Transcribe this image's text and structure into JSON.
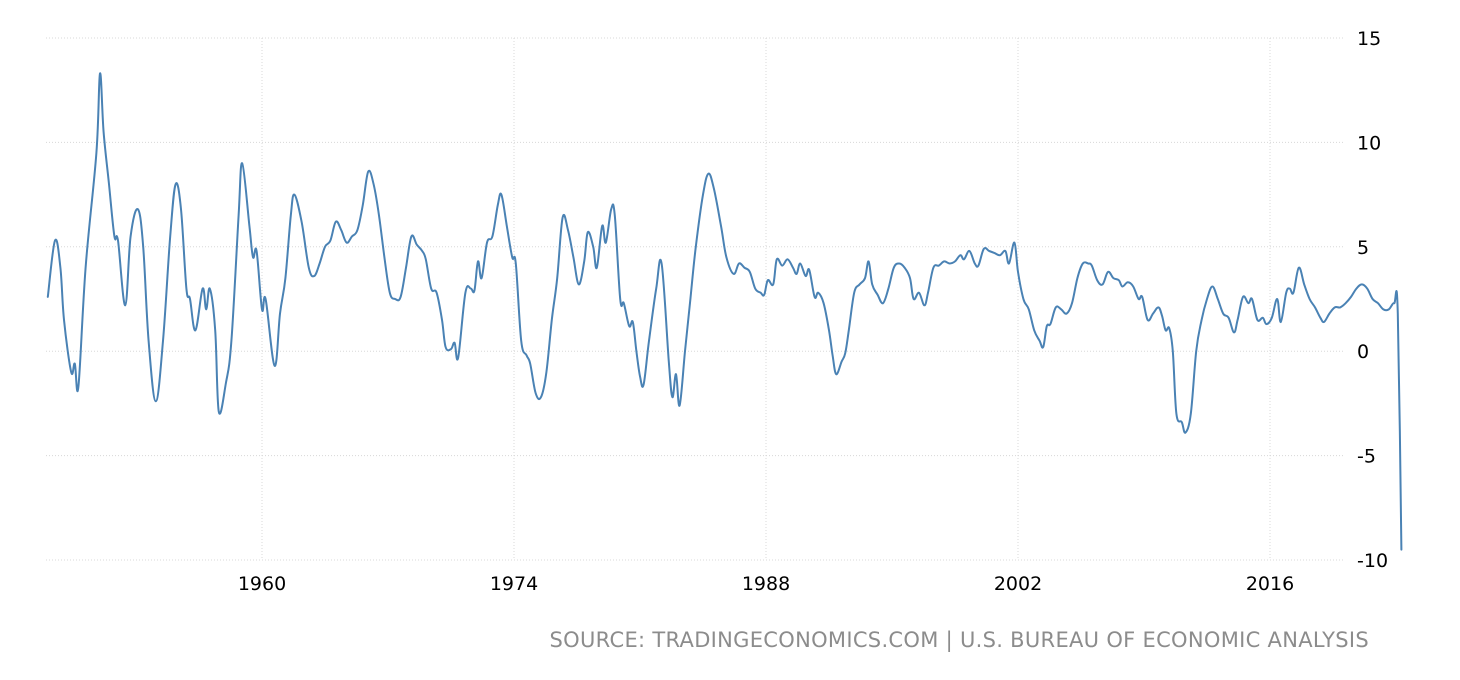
{
  "source": "SOURCE: TRADINGECONOMICS.COM | U.S. BUREAU OF ECONOMIC ANALYSIS",
  "colors": {
    "line": "#4a82b4",
    "grid": "#d8d8d8",
    "text": "#000000",
    "source": "#8c8c8c"
  },
  "chart_data": {
    "type": "line",
    "title": "",
    "xlabel": "",
    "ylabel": "",
    "xlim": [
      1948,
      2020.3
    ],
    "ylim": [
      -10,
      15
    ],
    "x_ticks": [
      1960,
      1974,
      1988,
      2002,
      2016
    ],
    "y_ticks": [
      15,
      10,
      5,
      0,
      -5,
      -10
    ],
    "y_axis_side": "right",
    "grid": true,
    "legend": "none",
    "series": [
      {
        "values": [
          [
            1948.1,
            2.6
          ],
          [
            1948.5,
            5.3
          ],
          [
            1948.8,
            4.0
          ],
          [
            1949.0,
            1.5
          ],
          [
            1949.4,
            -1.0
          ],
          [
            1949.6,
            -0.6
          ],
          [
            1949.8,
            -1.7
          ],
          [
            1950.2,
            4.0
          ],
          [
            1950.8,
            9.5
          ],
          [
            1951.0,
            13.3
          ],
          [
            1951.2,
            10.5
          ],
          [
            1951.5,
            8.0
          ],
          [
            1951.8,
            5.5
          ],
          [
            1952.0,
            5.3
          ],
          [
            1952.4,
            2.2
          ],
          [
            1952.7,
            5.5
          ],
          [
            1953.1,
            6.8
          ],
          [
            1953.4,
            5.0
          ],
          [
            1953.7,
            0.5
          ],
          [
            1954.1,
            -2.4
          ],
          [
            1954.5,
            0.5
          ],
          [
            1954.9,
            5.5
          ],
          [
            1955.2,
            8.0
          ],
          [
            1955.5,
            6.8
          ],
          [
            1955.8,
            3.0
          ],
          [
            1956.0,
            2.5
          ],
          [
            1956.3,
            1.0
          ],
          [
            1956.7,
            3.0
          ],
          [
            1956.9,
            2.0
          ],
          [
            1957.1,
            3.0
          ],
          [
            1957.4,
            1.0
          ],
          [
            1957.6,
            -2.9
          ],
          [
            1958.0,
            -1.5
          ],
          [
            1958.3,
            0.5
          ],
          [
            1958.7,
            6.5
          ],
          [
            1958.9,
            9.0
          ],
          [
            1959.3,
            6.0
          ],
          [
            1959.5,
            4.5
          ],
          [
            1959.7,
            4.8
          ],
          [
            1960.0,
            2.0
          ],
          [
            1960.2,
            2.5
          ],
          [
            1960.7,
            -0.7
          ],
          [
            1961.0,
            1.8
          ],
          [
            1961.3,
            3.5
          ],
          [
            1961.6,
            6.5
          ],
          [
            1961.8,
            7.5
          ],
          [
            1962.2,
            6.2
          ],
          [
            1962.6,
            4.0
          ],
          [
            1962.9,
            3.6
          ],
          [
            1963.2,
            4.2
          ],
          [
            1963.5,
            5.0
          ],
          [
            1963.8,
            5.3
          ],
          [
            1964.1,
            6.2
          ],
          [
            1964.4,
            5.8
          ],
          [
            1964.7,
            5.2
          ],
          [
            1965.0,
            5.5
          ],
          [
            1965.3,
            5.8
          ],
          [
            1965.6,
            7.0
          ],
          [
            1965.9,
            8.6
          ],
          [
            1966.2,
            8.0
          ],
          [
            1966.5,
            6.5
          ],
          [
            1966.8,
            4.5
          ],
          [
            1967.1,
            2.8
          ],
          [
            1967.4,
            2.5
          ],
          [
            1967.7,
            2.6
          ],
          [
            1968.0,
            4.0
          ],
          [
            1968.3,
            5.5
          ],
          [
            1968.6,
            5.1
          ],
          [
            1968.9,
            4.8
          ],
          [
            1969.1,
            4.4
          ],
          [
            1969.4,
            3.0
          ],
          [
            1969.7,
            2.8
          ],
          [
            1970.0,
            1.5
          ],
          [
            1970.2,
            0.2
          ],
          [
            1970.5,
            0.1
          ],
          [
            1970.7,
            0.4
          ],
          [
            1970.9,
            -0.3
          ],
          [
            1971.3,
            2.8
          ],
          [
            1971.6,
            3.0
          ],
          [
            1971.8,
            2.9
          ],
          [
            1972.0,
            4.3
          ],
          [
            1972.2,
            3.5
          ],
          [
            1972.5,
            5.2
          ],
          [
            1972.8,
            5.5
          ],
          [
            1973.1,
            7.0
          ],
          [
            1973.3,
            7.5
          ],
          [
            1973.6,
            6.0
          ],
          [
            1973.9,
            4.5
          ],
          [
            1974.1,
            4.2
          ],
          [
            1974.4,
            0.5
          ],
          [
            1974.7,
            -0.2
          ],
          [
            1974.9,
            -0.6
          ],
          [
            1975.2,
            -2.0
          ],
          [
            1975.5,
            -2.2
          ],
          [
            1975.8,
            -1.0
          ],
          [
            1976.1,
            1.5
          ],
          [
            1976.4,
            3.5
          ],
          [
            1976.7,
            6.4
          ],
          [
            1977.0,
            5.8
          ],
          [
            1977.3,
            4.5
          ],
          [
            1977.6,
            3.2
          ],
          [
            1977.9,
            4.3
          ],
          [
            1978.1,
            5.7
          ],
          [
            1978.4,
            5.0
          ],
          [
            1978.6,
            4.0
          ],
          [
            1978.9,
            6.0
          ],
          [
            1979.1,
            5.2
          ],
          [
            1979.4,
            6.8
          ],
          [
            1979.6,
            6.5
          ],
          [
            1979.9,
            2.5
          ],
          [
            1980.1,
            2.3
          ],
          [
            1980.4,
            1.2
          ],
          [
            1980.6,
            1.4
          ],
          [
            1980.8,
            0.0
          ],
          [
            1981.0,
            -1.2
          ],
          [
            1981.2,
            -1.6
          ],
          [
            1981.5,
            0.5
          ],
          [
            1981.9,
            3.0
          ],
          [
            1982.2,
            4.2
          ],
          [
            1982.6,
            -0.5
          ],
          [
            1982.8,
            -2.2
          ],
          [
            1983.0,
            -1.1
          ],
          [
            1983.2,
            -2.6
          ],
          [
            1983.5,
            0.0
          ],
          [
            1983.8,
            2.5
          ],
          [
            1984.1,
            5.0
          ],
          [
            1984.5,
            7.5
          ],
          [
            1984.8,
            8.5
          ],
          [
            1985.1,
            7.8
          ],
          [
            1985.5,
            6.0
          ],
          [
            1985.8,
            4.5
          ],
          [
            1986.2,
            3.7
          ],
          [
            1986.5,
            4.2
          ],
          [
            1986.8,
            4.0
          ],
          [
            1987.1,
            3.8
          ],
          [
            1987.4,
            3.0
          ],
          [
            1987.7,
            2.8
          ],
          [
            1987.9,
            2.7
          ],
          [
            1988.1,
            3.4
          ],
          [
            1988.4,
            3.2
          ],
          [
            1988.6,
            4.4
          ],
          [
            1988.9,
            4.1
          ],
          [
            1989.2,
            4.4
          ],
          [
            1989.5,
            4.0
          ],
          [
            1989.7,
            3.7
          ],
          [
            1989.9,
            4.2
          ],
          [
            1990.2,
            3.6
          ],
          [
            1990.4,
            3.9
          ],
          [
            1990.7,
            2.6
          ],
          [
            1990.9,
            2.8
          ],
          [
            1991.2,
            2.3
          ],
          [
            1991.5,
            1.0
          ],
          [
            1991.7,
            -0.2
          ],
          [
            1991.9,
            -1.1
          ],
          [
            1992.2,
            -0.5
          ],
          [
            1992.4,
            -0.1
          ],
          [
            1992.6,
            1.0
          ],
          [
            1992.9,
            2.8
          ],
          [
            1993.2,
            3.2
          ],
          [
            1993.5,
            3.5
          ],
          [
            1993.7,
            4.3
          ],
          [
            1993.9,
            3.2
          ],
          [
            1994.2,
            2.7
          ],
          [
            1994.5,
            2.3
          ],
          [
            1994.8,
            3.0
          ],
          [
            1995.1,
            4.0
          ],
          [
            1995.4,
            4.2
          ],
          [
            1995.7,
            4.0
          ],
          [
            1996.0,
            3.5
          ],
          [
            1996.2,
            2.5
          ],
          [
            1996.5,
            2.8
          ],
          [
            1996.8,
            2.2
          ],
          [
            1997.0,
            2.8
          ],
          [
            1997.3,
            4.0
          ],
          [
            1997.6,
            4.1
          ],
          [
            1997.9,
            4.3
          ],
          [
            1998.2,
            4.2
          ],
          [
            1998.5,
            4.3
          ],
          [
            1998.8,
            4.6
          ],
          [
            1999.0,
            4.4
          ],
          [
            1999.3,
            4.8
          ],
          [
            1999.6,
            4.2
          ],
          [
            1999.8,
            4.1
          ],
          [
            2000.1,
            4.9
          ],
          [
            2000.4,
            4.8
          ],
          [
            2000.7,
            4.7
          ],
          [
            2001.0,
            4.6
          ],
          [
            2001.3,
            4.8
          ],
          [
            2001.5,
            4.2
          ],
          [
            2001.8,
            5.2
          ],
          [
            2002.0,
            3.8
          ],
          [
            2002.3,
            2.5
          ],
          [
            2002.6,
            2.0
          ],
          [
            2002.9,
            1.0
          ],
          [
            2003.2,
            0.5
          ],
          [
            2003.4,
            0.2
          ],
          [
            2003.6,
            1.2
          ],
          [
            2003.8,
            1.3
          ],
          [
            2004.1,
            2.1
          ],
          [
            2004.4,
            2.0
          ],
          [
            2004.7,
            1.8
          ],
          [
            2005.0,
            2.3
          ],
          [
            2005.3,
            3.5
          ],
          [
            2005.6,
            4.2
          ],
          [
            2005.9,
            4.2
          ],
          [
            2006.1,
            4.1
          ],
          [
            2006.4,
            3.4
          ],
          [
            2006.7,
            3.2
          ],
          [
            2007.0,
            3.8
          ],
          [
            2007.3,
            3.5
          ],
          [
            2007.6,
            3.4
          ],
          [
            2007.8,
            3.1
          ],
          [
            2008.1,
            3.3
          ],
          [
            2008.4,
            3.1
          ],
          [
            2008.7,
            2.5
          ],
          [
            2008.9,
            2.6
          ],
          [
            2009.2,
            1.5
          ],
          [
            2009.5,
            1.8
          ],
          [
            2009.8,
            2.1
          ],
          [
            2010.0,
            1.7
          ],
          [
            2010.2,
            1.0
          ],
          [
            2010.4,
            1.1
          ],
          [
            2010.6,
            0.0
          ],
          [
            2010.8,
            -3.0
          ],
          [
            2011.1,
            -3.4
          ],
          [
            2011.3,
            -3.9
          ],
          [
            2011.6,
            -3.0
          ],
          [
            2011.9,
            0.0
          ],
          [
            2012.2,
            1.5
          ],
          [
            2012.5,
            2.5
          ],
          [
            2012.8,
            3.1
          ],
          [
            2013.1,
            2.5
          ],
          [
            2013.4,
            1.8
          ],
          [
            2013.7,
            1.6
          ],
          [
            2014.0,
            0.9
          ],
          [
            2014.2,
            1.5
          ],
          [
            2014.5,
            2.6
          ],
          [
            2014.8,
            2.3
          ],
          [
            2015.0,
            2.5
          ],
          [
            2015.3,
            1.5
          ],
          [
            2015.6,
            1.6
          ],
          [
            2015.8,
            1.3
          ],
          [
            2016.1,
            1.6
          ],
          [
            2016.4,
            2.5
          ],
          [
            2016.6,
            1.4
          ],
          [
            2016.9,
            2.8
          ],
          [
            2017.1,
            3.0
          ],
          [
            2017.3,
            2.8
          ],
          [
            2017.6,
            4.0
          ],
          [
            2017.9,
            3.2
          ],
          [
            2018.2,
            2.5
          ],
          [
            2018.5,
            2.1
          ],
          [
            2018.8,
            1.6
          ],
          [
            2019.0,
            1.4
          ],
          [
            2019.3,
            1.8
          ],
          [
            2019.6,
            2.1
          ],
          [
            2019.9,
            2.1
          ],
          [
            2020.2,
            2.3
          ],
          [
            2020.5,
            2.6
          ],
          [
            2020.8,
            3.0
          ],
          [
            2021.1,
            3.2
          ],
          [
            2021.4,
            3.0
          ],
          [
            2021.7,
            2.5
          ],
          [
            2022.0,
            2.3
          ],
          [
            2022.3,
            2.0
          ],
          [
            2022.6,
            2.0
          ],
          [
            2022.9,
            2.3
          ],
          [
            2023.1,
            1.8
          ],
          [
            2023.3,
            -9.5
          ]
        ]
      }
    ]
  }
}
